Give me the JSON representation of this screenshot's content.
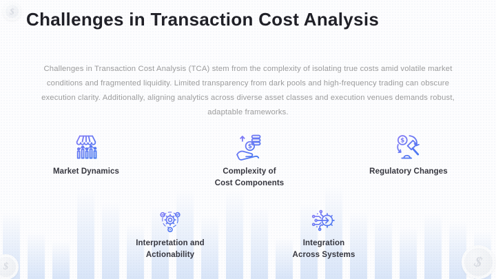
{
  "slide": {
    "title": "Challenges in Transaction Cost Analysis",
    "description": "Challenges in Transaction Cost Analysis (TCA) stem from the complexity of isolating true costs amid volatile market conditions and fragmented liquidity. Limited transparency from dark pools and high-frequency trading can obscure execution clarity. Additionally, aligning analytics across diverse asset classes and execution venues demands robust, adaptable frameworks."
  },
  "challenges": [
    {
      "label": "Market Dynamics",
      "icon": "storefront-chart-icon"
    },
    {
      "label": "Complexity of\nCost Components",
      "icon": "hand-coin-icon"
    },
    {
      "label": "Regulatory Changes",
      "icon": "gavel-dollar-icon"
    },
    {
      "label": "Interpretation and\nActionability",
      "icon": "gear-network-icon"
    },
    {
      "label": "Integration\nAcross Systems",
      "icon": "circuit-gear-icon"
    }
  ],
  "decor": {
    "coin_symbol": "$",
    "colors": {
      "icon_gradient_top": "#8A7BF7",
      "icon_gradient_bottom": "#3B76F0",
      "bar_fill": "#D7E4F8",
      "title_text": "#1E1E25",
      "body_text": "#9B9B9B",
      "label_text": "#34343C",
      "coin_face": "#F2F3F5"
    },
    "bar_heights": [
      97,
      68,
      55,
      131,
      112,
      80,
      106,
      130,
      93,
      128,
      104,
      60,
      110,
      135,
      98,
      88,
      76,
      95,
      84,
      70
    ]
  }
}
